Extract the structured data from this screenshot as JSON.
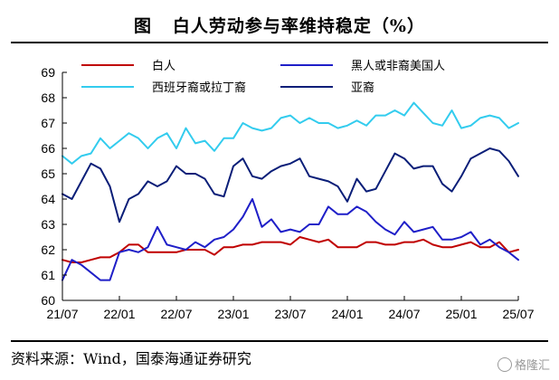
{
  "title": "图   白人劳动参与率维持稳定（%）",
  "source": "资料来源：Wind，国泰海通证券研究",
  "watermark": "格隆汇",
  "colors": {
    "white": "#C00000",
    "black": "#1F1FC8",
    "hispanic": "#33CCEE",
    "asian": "#0A1E78"
  },
  "chart_data": {
    "type": "line",
    "title": "白人劳动参与率维持稳定（%）",
    "xlabel": "",
    "ylabel": "",
    "ylim": [
      60,
      69
    ],
    "yticks": [
      60,
      61,
      62,
      63,
      64,
      65,
      66,
      67,
      68,
      69
    ],
    "xtick_labels": [
      "21/07",
      "22/01",
      "22/07",
      "23/01",
      "23/07",
      "24/01",
      "24/07",
      "25/01",
      "25/07"
    ],
    "x": [
      "21/07",
      "21/08",
      "21/09",
      "21/10",
      "21/11",
      "21/12",
      "22/01",
      "22/02",
      "22/03",
      "22/04",
      "22/05",
      "22/06",
      "22/07",
      "22/08",
      "22/09",
      "22/10",
      "22/11",
      "22/12",
      "23/01",
      "23/02",
      "23/03",
      "23/04",
      "23/05",
      "23/06",
      "23/07",
      "23/08",
      "23/09",
      "23/10",
      "23/11",
      "23/12",
      "24/01",
      "24/02",
      "24/03",
      "24/04",
      "24/05",
      "24/06",
      "24/07",
      "24/08",
      "24/09",
      "24/10",
      "24/11",
      "24/12",
      "25/01",
      "25/02",
      "25/03",
      "25/04",
      "25/05",
      "25/06",
      "25/07"
    ],
    "grid": false,
    "legend_position": "top, two columns",
    "series": [
      {
        "name": "白人",
        "color_key": "white",
        "values": [
          61.6,
          61.5,
          61.5,
          61.6,
          61.7,
          61.7,
          61.9,
          62.2,
          62.2,
          61.9,
          61.9,
          61.9,
          61.9,
          62.0,
          62.0,
          62.0,
          61.8,
          62.1,
          62.1,
          62.2,
          62.2,
          62.3,
          62.3,
          62.3,
          62.2,
          62.5,
          62.4,
          62.3,
          62.4,
          62.1,
          62.1,
          62.1,
          62.3,
          62.3,
          62.2,
          62.2,
          62.3,
          62.3,
          62.4,
          62.2,
          62.1,
          62.1,
          62.2,
          62.3,
          62.1,
          62.1,
          62.3,
          61.9,
          62.0
        ]
      },
      {
        "name": "黑人或非裔美国人",
        "color_key": "black",
        "values": [
          60.8,
          61.6,
          61.4,
          61.1,
          60.8,
          60.8,
          61.9,
          62.0,
          61.9,
          62.1,
          62.9,
          62.2,
          62.1,
          62.0,
          62.3,
          62.1,
          62.4,
          62.5,
          62.8,
          63.3,
          64.0,
          62.9,
          63.2,
          62.7,
          62.8,
          62.7,
          63.0,
          63.0,
          63.7,
          63.4,
          63.4,
          63.7,
          63.5,
          63.1,
          62.8,
          62.6,
          63.1,
          62.7,
          62.8,
          62.9,
          62.4,
          62.4,
          62.5,
          62.7,
          62.2,
          62.4,
          62.1,
          61.9,
          61.6
        ]
      },
      {
        "name": "西班牙裔或拉丁裔",
        "color_key": "hispanic",
        "values": [
          65.7,
          65.4,
          65.7,
          65.8,
          66.4,
          66.0,
          66.3,
          66.6,
          66.4,
          66.0,
          66.4,
          66.6,
          66.0,
          66.8,
          66.2,
          66.3,
          65.9,
          66.4,
          66.4,
          67.0,
          66.8,
          66.7,
          66.8,
          67.2,
          67.3,
          67.0,
          67.2,
          67.0,
          67.0,
          66.8,
          66.9,
          67.1,
          66.9,
          67.3,
          67.3,
          67.5,
          67.3,
          67.8,
          67.4,
          67.0,
          66.9,
          67.5,
          66.8,
          66.9,
          67.2,
          67.3,
          67.2,
          66.8,
          67.0
        ]
      },
      {
        "name": "亚裔",
        "color_key": "asian",
        "values": [
          64.2,
          64.0,
          64.7,
          65.4,
          65.2,
          64.5,
          63.1,
          64.0,
          64.2,
          64.7,
          64.5,
          64.7,
          65.3,
          65.0,
          65.0,
          64.8,
          64.2,
          64.1,
          65.3,
          65.6,
          64.9,
          64.8,
          65.1,
          65.3,
          65.4,
          65.6,
          64.9,
          64.8,
          64.7,
          64.5,
          63.9,
          64.8,
          64.3,
          64.4,
          65.1,
          65.8,
          65.6,
          65.2,
          65.3,
          65.3,
          64.6,
          64.3,
          64.9,
          65.6,
          65.8,
          66.0,
          65.9,
          65.5,
          64.9
        ]
      }
    ]
  }
}
